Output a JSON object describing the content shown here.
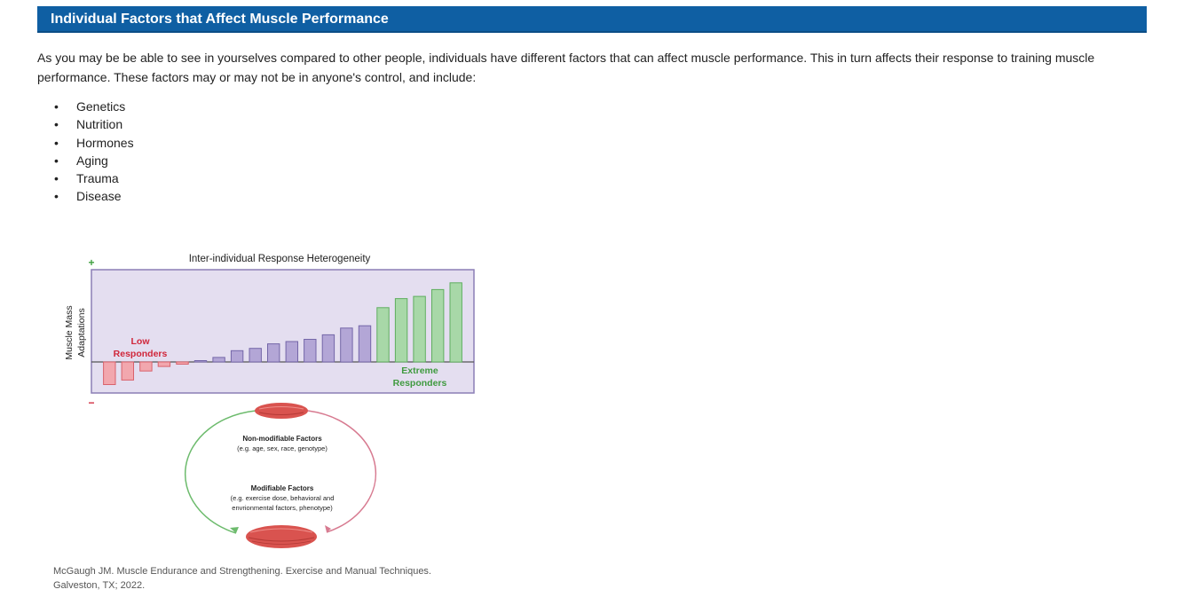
{
  "section": {
    "title": "Individual Factors that Affect Muscle Performance",
    "intro": "As you may be be able to see in yourselves compared to other people, individuals have different factors that can affect muscle performance. This in turn affects their response to training muscle performance. These factors may or may not be in anyone's control, and include:",
    "factors": [
      "Genetics",
      "Nutrition",
      "Hormones",
      "Aging",
      "Trauma",
      "Disease"
    ],
    "bullet": "•"
  },
  "figure": {
    "chart_title": "Inter-individual Response Heterogeneity",
    "y_axis_label_line1": "Muscle Mass",
    "y_axis_label_line2": "Adaptations",
    "plus_sign": "+",
    "minus_sign": "−",
    "low_label_line1": "Low",
    "low_label_line2": "Responders",
    "extreme_label_line1": "Extreme",
    "extreme_label_line2": "Responders",
    "non_modifiable_title": "Non-modifiable Factors",
    "non_modifiable_detail": "(e.g. age, sex, race, genotype)",
    "modifiable_title": "Modifiable Factors",
    "modifiable_detail_line1": "(e.g. exercise dose, behavioral and",
    "modifiable_detail_line2": "envrionmental factors, phenotype)",
    "colors": {
      "panel": "#e4def0",
      "panel_border": "#8b7fb6",
      "low": "#f2a7ae",
      "low_border": "#d9626c",
      "mid": "#b3a6d6",
      "mid_border": "#7466a8",
      "high": "#a8d8a8",
      "high_border": "#5fae5f",
      "low_text": "#d0263a",
      "high_text": "#3f9a3f",
      "plus": "#3fa03f",
      "minus": "#d0263a",
      "arc_left": "#6dbb6d",
      "arc_right": "#d77a90",
      "muscle": "#d9534f"
    }
  },
  "chart_data": {
    "type": "bar",
    "title": "Inter-individual Response Heterogeneity",
    "ylabel": "Muscle Mass Adaptations",
    "xlabel": "",
    "values": [
      -5,
      -4,
      -2,
      -1,
      -0.5,
      0,
      1,
      2.5,
      3,
      4,
      4.5,
      5,
      6,
      7.5,
      8,
      12,
      14,
      14.5,
      16,
      17.5
    ],
    "groups": [
      "low",
      "low",
      "low",
      "low",
      "low",
      "mid",
      "mid",
      "mid",
      "mid",
      "mid",
      "mid",
      "mid",
      "mid",
      "mid",
      "mid",
      "high",
      "high",
      "high",
      "high",
      "high"
    ],
    "ylim": [
      -7,
      20
    ]
  },
  "citation": {
    "line1": "McGaugh JM. Muscle Endurance and Strengthening. Exercise and Manual Techniques.",
    "line2": "Galveston, TX; 2022."
  }
}
